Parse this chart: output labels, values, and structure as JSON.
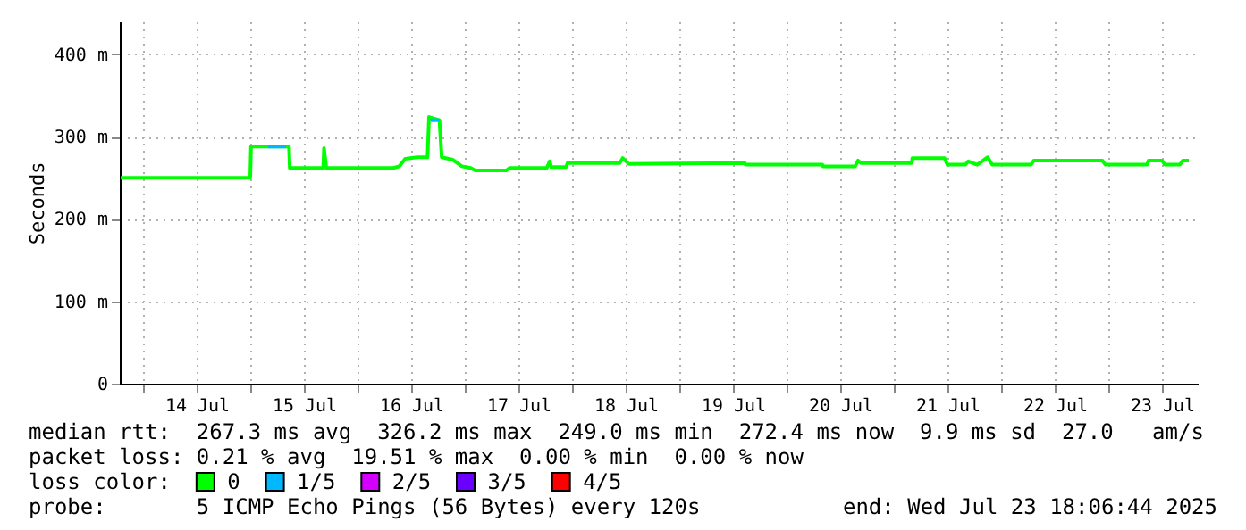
{
  "chart_data": {
    "type": "line",
    "ylabel": "Seconds",
    "x": [
      "2025-07-13T19:00",
      "2025-07-15T00:00",
      "2025-07-15T00:10",
      "2025-07-15T08:40",
      "2025-07-15T08:50",
      "2025-07-15T16:20",
      "2025-07-15T16:30",
      "2025-07-15T17:00",
      "2025-07-16T08:00",
      "2025-07-16T09:20",
      "2025-07-16T10:40",
      "2025-07-16T13:20",
      "2025-07-16T15:40",
      "2025-07-16T16:00",
      "2025-07-16T18:20",
      "2025-07-16T18:50",
      "2025-07-16T21:20",
      "2025-07-16T23:20",
      "2025-07-17T01:20",
      "2025-07-17T02:20",
      "2025-07-17T09:20",
      "2025-07-17T10:00",
      "2025-07-17T18:20",
      "2025-07-17T19:00",
      "2025-07-17T19:20",
      "2025-07-17T22:40",
      "2025-07-17T23:00",
      "2025-07-18T10:40",
      "2025-07-18T11:20",
      "2025-07-18T12:40",
      "2025-07-19T14:40",
      "2025-07-19T14:50",
      "2025-07-20T08:00",
      "2025-07-20T08:10",
      "2025-07-20T15:20",
      "2025-07-20T16:00",
      "2025-07-20T16:40",
      "2025-07-21T04:00",
      "2025-07-21T04:10",
      "2025-07-21T11:20",
      "2025-07-21T12:00",
      "2025-07-21T16:00",
      "2025-07-21T16:40",
      "2025-07-21T18:40",
      "2025-07-21T21:00",
      "2025-07-21T22:00",
      "2025-07-22T06:40",
      "2025-07-22T07:20",
      "2025-07-22T22:40",
      "2025-07-22T23:20",
      "2025-07-23T08:40",
      "2025-07-23T09:00",
      "2025-07-23T12:00",
      "2025-07-23T12:40",
      "2025-07-23T16:00",
      "2025-07-23T16:40",
      "2025-07-23T18:00"
    ],
    "series": [
      {
        "name": "0",
        "color": "#00ff00",
        "values": [
          250,
          250,
          288,
          288,
          262,
          262,
          286,
          262,
          262,
          264,
          273,
          275,
          275,
          324,
          320,
          275,
          272,
          264,
          262,
          259,
          259,
          262,
          262,
          270,
          263,
          263,
          268,
          268,
          274,
          267,
          268,
          266,
          266,
          264,
          264,
          271,
          268,
          268,
          274,
          274,
          266,
          266,
          270,
          266,
          275,
          266,
          266,
          271,
          271,
          266,
          266,
          271,
          271,
          266,
          266,
          271,
          271
        ]
      },
      {
        "name": "1/5",
        "color": "#00b8ff",
        "x": [
          "2025-07-15T04:00",
          "2025-07-15T08:00",
          "2025-07-15T12:00",
          "2025-07-16T16:20",
          "2025-07-16T18:20"
        ],
        "values": [
          288,
          288,
          null,
          320,
          320
        ]
      },
      {
        "name": "2/5",
        "color": "#d400ff",
        "values": [
          null,
          null,
          null,
          null,
          null,
          null,
          null,
          null,
          null,
          null,
          null,
          null,
          null,
          null,
          null,
          null,
          null,
          null,
          null,
          null,
          null,
          null,
          null,
          null,
          null,
          null,
          null,
          null,
          null,
          null,
          null,
          null,
          null,
          null,
          null,
          null,
          null,
          null,
          null,
          null,
          null,
          null,
          null,
          null,
          null,
          null,
          null,
          null,
          null,
          null,
          null,
          null,
          null,
          null,
          null,
          null,
          null
        ]
      },
      {
        "name": "3/5",
        "color": "#6a00ff",
        "values": [
          null,
          null,
          null,
          null,
          null,
          null,
          null,
          null,
          null,
          null,
          null,
          null,
          null,
          null,
          null,
          null,
          null,
          null,
          null,
          null,
          null,
          null,
          null,
          null,
          null,
          null,
          null,
          null,
          null,
          null,
          null,
          null,
          null,
          null,
          null,
          null,
          null,
          null,
          null,
          null,
          null,
          null,
          null,
          null,
          null,
          null,
          null,
          null,
          null,
          null,
          null,
          null,
          null,
          null,
          null,
          null,
          null
        ]
      },
      {
        "name": "4/5",
        "color": "#ff0000",
        "values": [
          null,
          null,
          null,
          null,
          null,
          null,
          null,
          null,
          null,
          null,
          null,
          null,
          null,
          null,
          null,
          null,
          null,
          null,
          null,
          null,
          null,
          null,
          null,
          null,
          null,
          null,
          null,
          null,
          null,
          null,
          null,
          null,
          null,
          null,
          null,
          null,
          null,
          null,
          null,
          null,
          null,
          null,
          null,
          null,
          null,
          null,
          null,
          null,
          null,
          null,
          null,
          null,
          null,
          null,
          null,
          null,
          null
        ]
      }
    ],
    "legend": "bottom",
    "legend_title": "loss color:",
    "xlim": [
      "2025-07-13T18:48",
      "2025-07-23T20:00"
    ],
    "xticks": [
      {
        "value": "2025-07-14T00:00",
        "label": null
      },
      {
        "value": "2025-07-14T12:00",
        "label": "14 Jul"
      },
      {
        "value": "2025-07-15T00:00",
        "label": null
      },
      {
        "value": "2025-07-15T12:00",
        "label": "15 Jul"
      },
      {
        "value": "2025-07-16T00:00",
        "label": null
      },
      {
        "value": "2025-07-16T12:00",
        "label": "16 Jul"
      },
      {
        "value": "2025-07-17T00:00",
        "label": null
      },
      {
        "value": "2025-07-17T12:00",
        "label": "17 Jul"
      },
      {
        "value": "2025-07-18T00:00",
        "label": null
      },
      {
        "value": "2025-07-18T12:00",
        "label": "18 Jul"
      },
      {
        "value": "2025-07-19T00:00",
        "label": null
      },
      {
        "value": "2025-07-19T12:00",
        "label": "19 Jul"
      },
      {
        "value": "2025-07-20T00:00",
        "label": null
      },
      {
        "value": "2025-07-20T12:00",
        "label": "20 Jul"
      },
      {
        "value": "2025-07-21T00:00",
        "label": null
      },
      {
        "value": "2025-07-21T12:00",
        "label": "21 Jul"
      },
      {
        "value": "2025-07-22T00:00",
        "label": null
      },
      {
        "value": "2025-07-22T12:00",
        "label": "22 Jul"
      },
      {
        "value": "2025-07-23T00:00",
        "label": null
      },
      {
        "value": "2025-07-23T12:00",
        "label": "23 Jul"
      }
    ],
    "ylim": [
      0,
      440
    ],
    "yticks": [
      0,
      {
        "value": 100,
        "label": "100 m"
      },
      {
        "value": 200,
        "label": "200 m"
      },
      {
        "value": 300,
        "label": "300 m"
      },
      {
        "value": 400,
        "label": "400 m"
      }
    ],
    "grid": true,
    "annotations": [
      "median rtt:  267.3 ms avg  326.2 ms max  249.0 ms min  272.4 ms now  9.9 ms sd  27.0   am/s",
      "packet loss: 0.21 % avg  19.51 % max  0.00 % min  0.00 % now",
      "probe:       5 ICMP Echo Pings (56 Bytes) every 120s",
      "end: Wed Jul 23 18:06:44 2025"
    ]
  }
}
